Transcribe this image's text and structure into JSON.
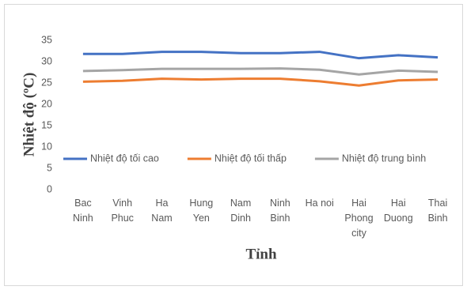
{
  "chart_data": {
    "type": "line",
    "x_label": "Tỉnh",
    "y_label": "Nhiệt độ (ºC)",
    "categories": [
      "Bac Ninh",
      "Vinh Phuc",
      "Ha Nam",
      "Hung Yen",
      "Nam Dinh",
      "Ninh Binh",
      "Ha noi",
      "Hai Phong city",
      "Hai Duong",
      "Thai Binh"
    ],
    "series": [
      {
        "name": "Nhiệt độ tối cao",
        "color": "#4472c4",
        "values": [
          31.8,
          31.8,
          32.3,
          32.3,
          32.0,
          32.0,
          32.3,
          30.8,
          31.5,
          31.0
        ]
      },
      {
        "name": "Nhiệt độ tối thấp",
        "color": "#ed7d31",
        "values": [
          25.3,
          25.5,
          26.0,
          25.8,
          26.0,
          26.0,
          25.4,
          24.4,
          25.6,
          25.8
        ]
      },
      {
        "name": "Nhiệt độ trung bình",
        "color": "#a5a5a5",
        "values": [
          27.8,
          28.0,
          28.3,
          28.3,
          28.3,
          28.4,
          28.1,
          27.0,
          27.9,
          27.6
        ]
      }
    ],
    "ylim": [
      0,
      35
    ],
    "yticks": [
      0,
      5,
      10,
      15,
      20,
      25,
      30,
      35
    ],
    "grid": false,
    "legend": "bottom"
  }
}
